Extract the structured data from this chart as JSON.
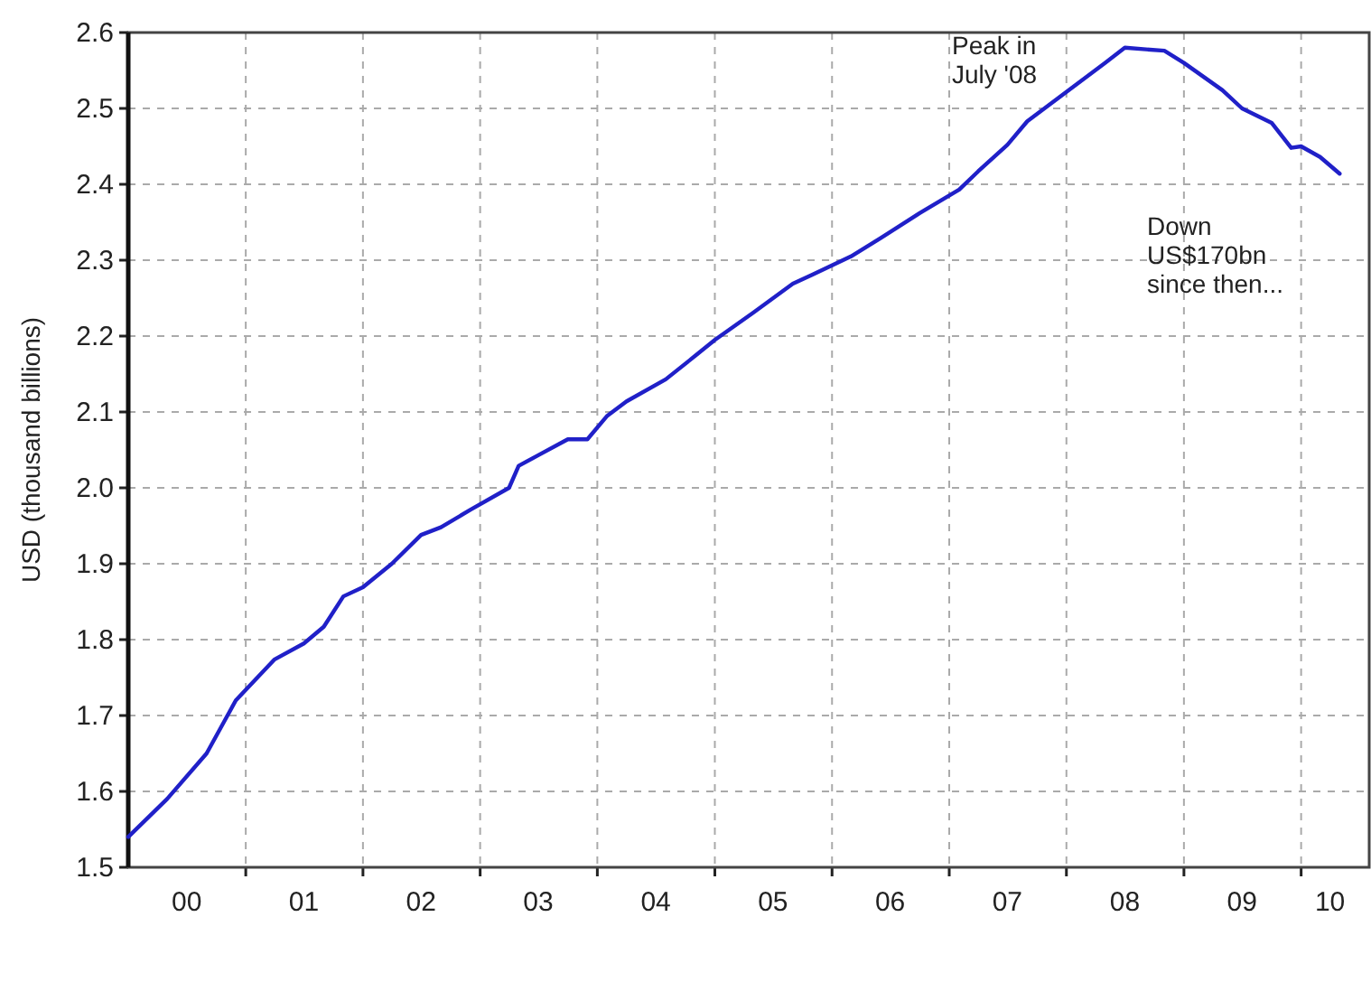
{
  "chart_data": {
    "type": "line",
    "ylabel": "USD (thousand billions)",
    "x": [
      "2000-01",
      "2000-05",
      "2000-09",
      "2000-12",
      "2001-04",
      "2001-07",
      "2001-09",
      "2001-11",
      "2002-01",
      "2002-04",
      "2002-07",
      "2002-09",
      "2002-12",
      "2003-04",
      "2003-05",
      "2003-07",
      "2003-10",
      "2003-12",
      "2004-02",
      "2004-04",
      "2004-08",
      "2004-11",
      "2005-01",
      "2005-05",
      "2005-09",
      "2005-11",
      "2006-03",
      "2006-06",
      "2006-10",
      "2007-02",
      "2007-04",
      "2007-07",
      "2007-09",
      "2007-12",
      "2008-05",
      "2008-07",
      "2008-11",
      "2009-01",
      "2009-05",
      "2009-07",
      "2009-10",
      "2009-12",
      "2010-01",
      "2010-03",
      "2010-05"
    ],
    "series": [
      {
        "color": "#2020c8",
        "values": [
          1.54,
          1.59,
          1.65,
          1.72,
          1.774,
          1.795,
          1.817,
          1.857,
          1.869,
          1.9,
          1.938,
          1.948,
          1.971,
          2.0,
          2.029,
          2.043,
          2.064,
          2.064,
          2.095,
          2.114,
          2.143,
          2.174,
          2.195,
          2.231,
          2.269,
          2.281,
          2.305,
          2.329,
          2.362,
          2.393,
          2.417,
          2.452,
          2.483,
          2.512,
          2.56,
          2.58,
          2.576,
          2.56,
          2.524,
          2.5,
          2.481,
          2.448,
          2.45,
          2.436,
          2.414
        ]
      }
    ],
    "xlim": [
      "2000-01",
      "2010-08"
    ],
    "xticks": [
      {
        "value": "2000-07",
        "label": "00"
      },
      {
        "value": "2001-01",
        "label": null
      },
      {
        "value": "2001-07",
        "label": "01"
      },
      {
        "value": "2002-01",
        "label": null
      },
      {
        "value": "2002-07",
        "label": "02"
      },
      {
        "value": "2003-01",
        "label": null
      },
      {
        "value": "2003-07",
        "label": "03"
      },
      {
        "value": "2004-01",
        "label": null
      },
      {
        "value": "2004-07",
        "label": "04"
      },
      {
        "value": "2005-01",
        "label": null
      },
      {
        "value": "2005-07",
        "label": "05"
      },
      {
        "value": "2006-01",
        "label": null
      },
      {
        "value": "2006-07",
        "label": "06"
      },
      {
        "value": "2007-01",
        "label": null
      },
      {
        "value": "2007-07",
        "label": "07"
      },
      {
        "value": "2008-01",
        "label": null
      },
      {
        "value": "2008-07",
        "label": "08"
      },
      {
        "value": "2009-01",
        "label": null
      },
      {
        "value": "2009-07",
        "label": "09"
      },
      {
        "value": "2010-01",
        "label": null
      },
      {
        "value": "2010-04",
        "label": "10"
      }
    ],
    "ylim": [
      1.5,
      2.6
    ],
    "yticks": [
      {
        "value": 1.5,
        "label": "1.5"
      },
      {
        "value": 1.6,
        "label": "1.6"
      },
      {
        "value": 1.7,
        "label": "1.7"
      },
      {
        "value": 1.8,
        "label": "1.8"
      },
      {
        "value": 1.9,
        "label": "1.9"
      },
      {
        "value": 2.0,
        "label": "2.0"
      },
      {
        "value": 2.1,
        "label": "2.1"
      },
      {
        "value": 2.2,
        "label": "2.2"
      },
      {
        "value": 2.3,
        "label": "2.3"
      },
      {
        "value": 2.4,
        "label": "2.4"
      },
      {
        "value": 2.5,
        "label": "2.5"
      },
      {
        "value": 2.6,
        "label": "2.6"
      }
    ],
    "grid": true,
    "line_style": "solid",
    "marker": "none",
    "annotations": [
      "Peak in\nJuly '08",
      "Down\nUS$170bn\nsince then..."
    ]
  }
}
